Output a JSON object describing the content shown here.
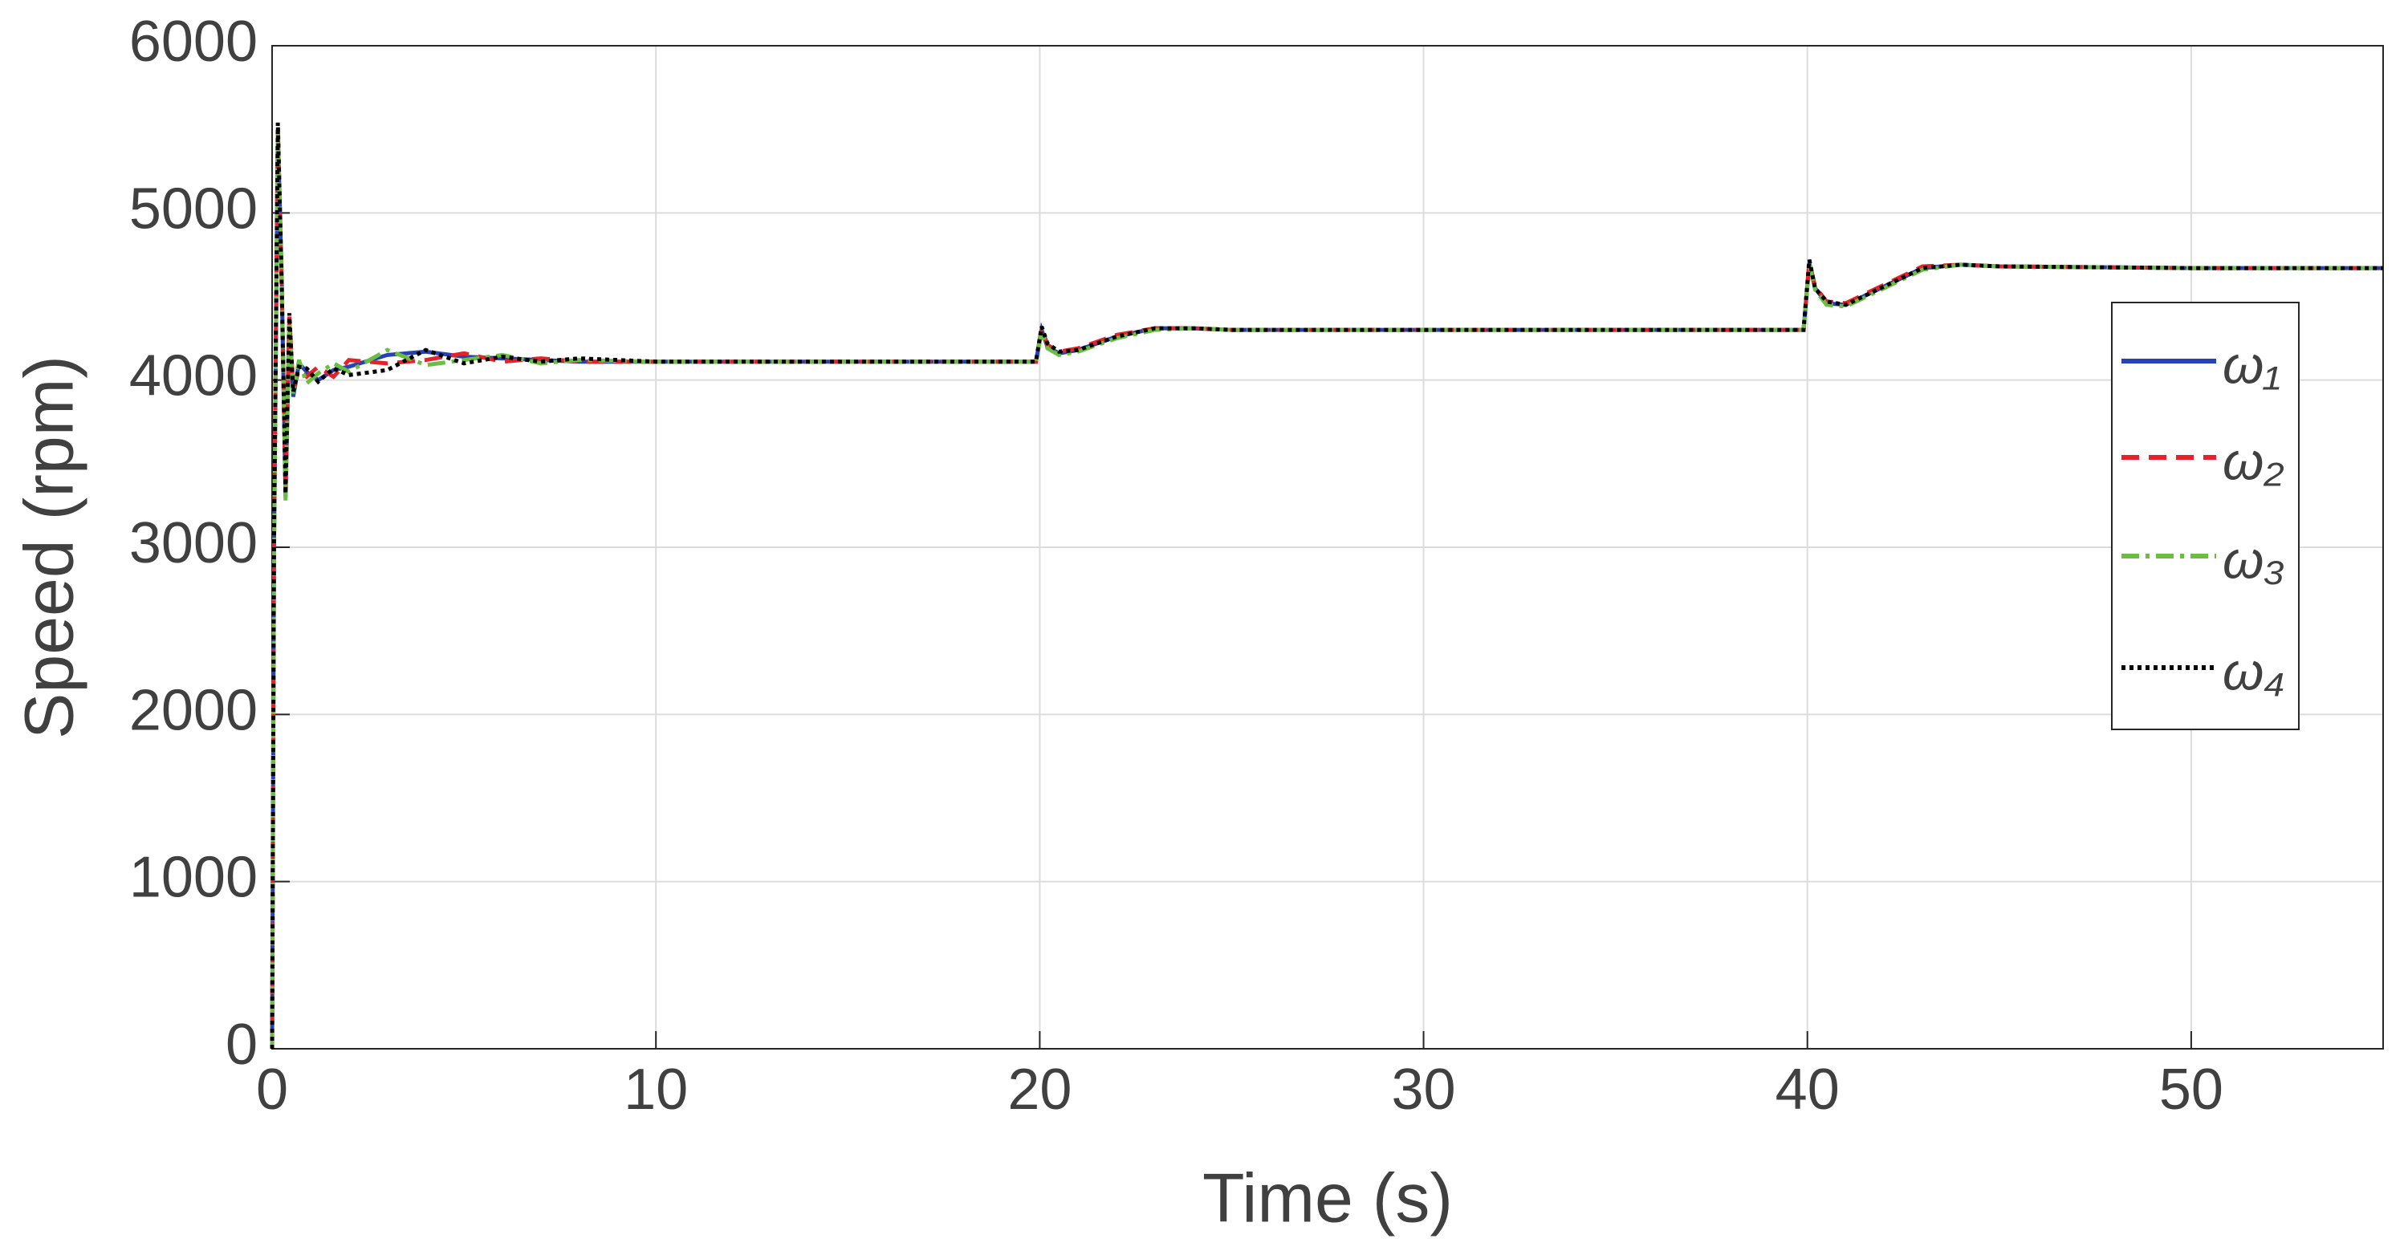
{
  "chart_data": {
    "type": "line",
    "x_label": "Time (s)",
    "y_label": "Speed (rpm)",
    "x": [
      0,
      0.05,
      0.15,
      0.25,
      0.35,
      0.45,
      0.55,
      0.7,
      0.9,
      1.2,
      1.6,
      2,
      3,
      4,
      5,
      6,
      7,
      8,
      10,
      15,
      19.9,
      20.05,
      20.2,
      20.5,
      21,
      22,
      23,
      24,
      25,
      30,
      39.9,
      40.05,
      40.2,
      40.5,
      41,
      42,
      43,
      44,
      45,
      50,
      55
    ],
    "series": [
      {
        "name": "ω₁",
        "color": "#2742b5",
        "style": "solid",
        "values": [
          0,
          3000,
          5500,
          4600,
          3300,
          4350,
          3900,
          4100,
          4050,
          4000,
          4060,
          4080,
          4150,
          4170,
          4140,
          4130,
          4120,
          4110,
          4110,
          4110,
          4110,
          4300,
          4200,
          4160,
          4180,
          4260,
          4310,
          4310,
          4300,
          4300,
          4300,
          4700,
          4550,
          4460,
          4450,
          4560,
          4670,
          4690,
          4680,
          4670,
          4670
        ]
      },
      {
        "name": "ω₂",
        "color": "#e8202a",
        "style": "dashed",
        "values": [
          0,
          3100,
          5520,
          4550,
          3350,
          4380,
          3950,
          4060,
          4020,
          4080,
          4020,
          4120,
          4100,
          4120,
          4160,
          4110,
          4130,
          4110,
          4110,
          4110,
          4110,
          4310,
          4210,
          4170,
          4190,
          4270,
          4310,
          4310,
          4300,
          4300,
          4300,
          4710,
          4560,
          4470,
          4460,
          4570,
          4680,
          4690,
          4680,
          4670,
          4670
        ]
      },
      {
        "name": "ω₃",
        "color": "#6abf40",
        "style": "dashdot",
        "values": [
          0,
          2900,
          5480,
          4650,
          3280,
          4330,
          3920,
          4120,
          3980,
          4040,
          4100,
          4050,
          4180,
          4090,
          4120,
          4150,
          4100,
          4120,
          4110,
          4110,
          4110,
          4290,
          4190,
          4150,
          4170,
          4250,
          4300,
          4310,
          4300,
          4300,
          4300,
          4690,
          4540,
          4450,
          4440,
          4550,
          4660,
          4690,
          4680,
          4670,
          4670
        ]
      },
      {
        "name": "ω₄",
        "color": "#000000",
        "style": "dotted",
        "values": [
          0,
          3050,
          5540,
          4580,
          3320,
          4400,
          3930,
          4080,
          4070,
          3990,
          4070,
          4030,
          4060,
          4180,
          4100,
          4140,
          4110,
          4130,
          4110,
          4110,
          4110,
          4320,
          4220,
          4170,
          4180,
          4260,
          4310,
          4310,
          4300,
          4300,
          4300,
          4720,
          4550,
          4470,
          4450,
          4560,
          4670,
          4690,
          4680,
          4670,
          4670
        ]
      }
    ],
    "xlim": [
      0,
      55
    ],
    "xticks": [
      0,
      10,
      20,
      30,
      40,
      50
    ],
    "ylim": [
      0,
      6000
    ],
    "yticks": [
      0,
      1000,
      2000,
      3000,
      4000,
      5000,
      6000
    ],
    "grid": true,
    "legend": "right"
  }
}
